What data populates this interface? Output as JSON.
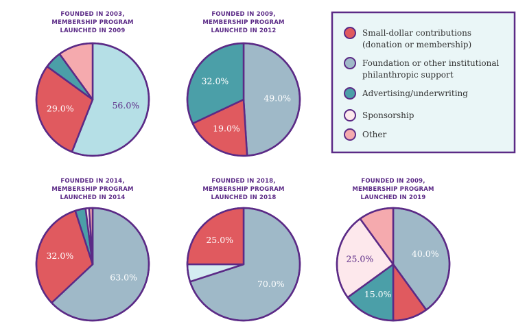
{
  "chart_data": [
    {
      "type": "pie",
      "title": "FOUNDED IN 2003,\nMEMBERSHIP PROGRAM\nLAUNCHED IN 2009",
      "values": [
        56,
        29,
        5,
        10
      ],
      "value_labels": [
        "56.0%",
        "29.0%",
        null,
        null
      ],
      "colors": [
        "#b5dfe6",
        "#e05a5f",
        "#4b9fa8",
        "#f5aaae"
      ]
    },
    {
      "type": "pie",
      "title": "FOUNDED IN 2009,\nMEMBERSHIP PROGRAM\nLAUNCHED IN 2012",
      "values": [
        49,
        19,
        32
      ],
      "value_labels": [
        "49.0%",
        "19.0%",
        "32.0%"
      ],
      "colors": [
        "#9fb9c8",
        "#e05a5f",
        "#4b9fa8"
      ]
    },
    {
      "type": "pie",
      "title": "FOUNDED IN 2014,\nMEMBERSHIP PROGRAM\nLAUNCHED IN 2014",
      "values": [
        63,
        32,
        3,
        1,
        1
      ],
      "value_labels": [
        "63.0%",
        "32.0%",
        null,
        null,
        null
      ],
      "colors": [
        "#9fb9c8",
        "#e05a5f",
        "#4b9fa8",
        "#fde8ec",
        "#f5aaae"
      ]
    },
    {
      "type": "pie",
      "title": "FOUNDED IN 2018,\nMEMBERSHIP PROGRAM\nLAUNCHED IN 2018",
      "values": [
        70,
        5,
        25
      ],
      "value_labels": [
        "70.0%",
        null,
        "25.0%"
      ],
      "colors": [
        "#9fb9c8",
        "#d4ecf1",
        "#e05a5f"
      ]
    },
    {
      "type": "pie",
      "title": "FOUNDED IN 2009,\nMEMBERSHIP PROGRAM\nLAUNCHED IN 2019",
      "values": [
        40,
        10,
        15,
        25,
        10
      ],
      "value_labels": [
        "40.0%",
        null,
        "15.0%",
        "25.0%",
        null
      ],
      "colors": [
        "#9fb9c8",
        "#e05a5f",
        "#4b9fa8",
        "#fde8ec",
        "#f5aaae"
      ]
    }
  ],
  "legend": {
    "items": [
      {
        "label": "Small-dollar contributions\n(donation or membership)",
        "color": "#e05a5f"
      },
      {
        "label": "Foundation or other institutional\nphilanthropic support",
        "color": "#9fb9c8"
      },
      {
        "label": "Advertising/underwriting",
        "color": "#4b9fa8"
      },
      {
        "label": "Sponsorship",
        "color": "#fde8ec"
      },
      {
        "label": "Other",
        "color": "#f5aaae"
      }
    ]
  }
}
